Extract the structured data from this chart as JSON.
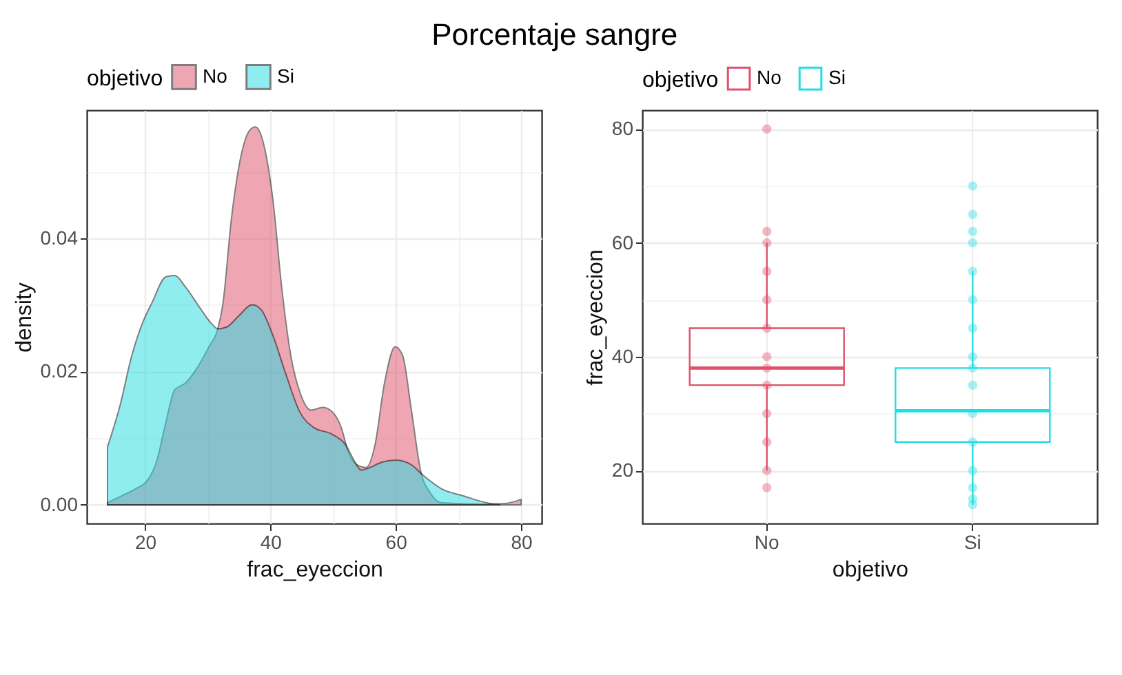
{
  "chart_data": [
    {
      "type": "area",
      "title": "Porcentaje sangre",
      "xlabel": "frac_eyeccion",
      "ylabel": "density",
      "legend_title": "objetivo",
      "legend": "top",
      "grid": true,
      "xlim": [
        10.7,
        83.3
      ],
      "xticks": [
        20,
        {
          "value": 30,
          "label": null
        },
        40,
        {
          "value": 50,
          "label": null
        },
        60,
        {
          "value": 70,
          "label": null
        },
        80
      ],
      "ylim": [
        -0.0028,
        0.0592
      ],
      "yticks": [
        {
          "value": 0,
          "label": "0.00"
        },
        {
          "value": 0.01,
          "label": null
        },
        {
          "value": 0.02,
          "label": "0.02"
        },
        {
          "value": 0.03,
          "label": null
        },
        {
          "value": 0.04,
          "label": "0.04"
        },
        {
          "value": 0.05,
          "label": null
        }
      ],
      "series": [
        {
          "name": "No",
          "color": "#e0506a",
          "x": [
            14,
            16.4,
            18.5,
            20.4,
            21.8,
            23.3,
            24.7,
            26.5,
            28,
            30.2,
            31.6,
            32.4,
            33.8,
            35.3,
            36.7,
            37.6,
            38.9,
            40.4,
            41.8,
            43.3,
            44.7,
            46.5,
            48.4,
            50.2,
            51.3,
            52.4,
            53.8,
            55.3,
            56.7,
            58.2,
            59.9,
            61.1,
            62.5,
            64,
            65.5,
            67.3,
            74.5,
            77.5,
            80
          ],
          "values": [
            0.0003,
            0.0014,
            0.0024,
            0.0037,
            0.0064,
            0.0123,
            0.0172,
            0.0183,
            0.0201,
            0.0237,
            0.0264,
            0.03,
            0.0431,
            0.0523,
            0.0562,
            0.0567,
            0.0542,
            0.0457,
            0.0326,
            0.0221,
            0.0169,
            0.0142,
            0.0146,
            0.0136,
            0.0116,
            0.008,
            0.006,
            0.0056,
            0.009,
            0.0182,
            0.0237,
            0.0224,
            0.0142,
            0.005,
            0.0018,
            0.0003,
            0.0001,
            0.0002,
            0.0008
          ]
        },
        {
          "name": "Si",
          "color": "#22dde3",
          "x": [
            14,
            16,
            17.8,
            19.6,
            21.1,
            23.3,
            24.7,
            26.5,
            28.7,
            30.5,
            31.6,
            33.1,
            34.9,
            37.1,
            38.5,
            40.4,
            42.5,
            44.7,
            46.9,
            49.8,
            52,
            53.5,
            54.5,
            55.6,
            57.8,
            60,
            62.5,
            64.4,
            67.3,
            70.9,
            74.5,
            76.7
          ],
          "values": [
            0.0087,
            0.0149,
            0.0221,
            0.0273,
            0.0303,
            0.0342,
            0.0344,
            0.0326,
            0.0296,
            0.0273,
            0.0264,
            0.0267,
            0.0283,
            0.03,
            0.0293,
            0.0254,
            0.0195,
            0.0139,
            0.0116,
            0.0106,
            0.009,
            0.0064,
            0.0052,
            0.0055,
            0.0064,
            0.0067,
            0.006,
            0.0044,
            0.0024,
            0.0013,
            0.0003,
            0
          ]
        }
      ]
    },
    {
      "type": "box",
      "xlabel": "objetivo",
      "ylabel": "frac_eyeccion",
      "legend_title": "objetivo",
      "legend": "top",
      "grid": true,
      "categories": [
        "No",
        "Si"
      ],
      "ylim": [
        10.7,
        83.3
      ],
      "yticks": [
        20,
        {
          "value": 30,
          "label": null
        },
        40,
        {
          "value": 50,
          "label": null
        },
        60,
        {
          "value": 70,
          "label": null
        },
        80
      ],
      "series": [
        {
          "name": "No",
          "color": "#e0506a",
          "boxes": [
            {
              "low": 20,
              "q1": 35,
              "median": 38,
              "q3": 45,
              "high": 60
            },
            null
          ]
        },
        {
          "name": "Si",
          "color": "#22dde3",
          "boxes": [
            null,
            {
              "low": 14,
              "q1": 25,
              "median": 30.5,
              "q3": 38,
              "high": 55
            }
          ]
        },
        {
          "type": "scatter",
          "marker": "circle",
          "color": "#e0506a",
          "x": [
            "No",
            "No",
            "No",
            "No",
            "No",
            "No",
            "No",
            "No",
            "No",
            "No",
            "No",
            "No",
            "No"
          ],
          "values": [
            80,
            62,
            60,
            55,
            50,
            45,
            40,
            38,
            35,
            30,
            25,
            20,
            17
          ]
        },
        {
          "type": "scatter",
          "marker": "circle",
          "color": "#22dde3",
          "x": [
            "Si",
            "Si",
            "Si",
            "Si",
            "Si",
            "Si",
            "Si",
            "Si",
            "Si",
            "Si",
            "Si",
            "Si",
            "Si",
            "Si",
            "Si",
            "Si"
          ],
          "values": [
            70,
            65,
            62,
            60,
            55,
            50,
            45,
            40,
            38,
            35,
            30,
            25,
            20,
            17,
            15,
            14
          ]
        }
      ]
    }
  ]
}
